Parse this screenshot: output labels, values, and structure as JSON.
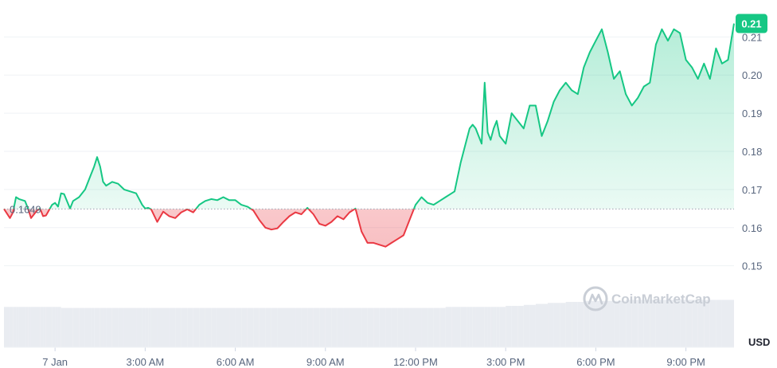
{
  "chart_data": {
    "type": "area",
    "x_ticks": [
      "7 Jan",
      "3:00 AM",
      "6:00 AM",
      "9:00 AM",
      "12:00 PM",
      "3:00 PM",
      "6:00 PM",
      "9:00 PM"
    ],
    "y_ticks": [
      0.15,
      0.16,
      0.17,
      0.18,
      0.19,
      0.2,
      0.21
    ],
    "y_unit_label": "USD",
    "ylim": [
      0.142,
      0.218
    ],
    "x_range_hours": [
      -1.7,
      22.6
    ],
    "reference_price": 0.1649,
    "reference_label": "0.1649",
    "current_price_label": "0.21",
    "current_price": 0.2135,
    "watermark": "CoinMarketCap",
    "grid": true,
    "colors": {
      "up": "#16c784",
      "down": "#ea3943",
      "badge": "#16c784",
      "volume": "#e9ecf1"
    },
    "series": {
      "x_hours": [
        -1.7,
        -1.5,
        -1.4,
        -1.3,
        -1.2,
        -1.0,
        -0.9,
        -0.8,
        -0.6,
        -0.5,
        -0.4,
        -0.3,
        -0.1,
        0.0,
        0.1,
        0.2,
        0.3,
        0.5,
        0.6,
        0.8,
        1.0,
        1.2,
        1.3,
        1.4,
        1.5,
        1.6,
        1.7,
        1.9,
        2.1,
        2.3,
        2.5,
        2.7,
        2.9,
        3.0,
        3.1,
        3.2,
        3.4,
        3.6,
        3.8,
        4.0,
        4.2,
        4.4,
        4.6,
        4.8,
        5.0,
        5.2,
        5.4,
        5.6,
        5.8,
        6.0,
        6.2,
        6.4,
        6.6,
        6.8,
        7.0,
        7.2,
        7.4,
        7.6,
        7.8,
        8.0,
        8.2,
        8.4,
        8.6,
        8.8,
        9.0,
        9.2,
        9.4,
        9.6,
        9.8,
        10.0,
        10.2,
        10.4,
        10.6,
        10.8,
        11.0,
        11.2,
        11.4,
        11.6,
        11.8,
        12.0,
        12.2,
        12.4,
        12.6,
        12.8,
        13.0,
        13.2,
        13.3,
        13.5,
        13.7,
        13.8,
        13.9,
        14.0,
        14.2,
        14.3,
        14.4,
        14.5,
        14.6,
        14.7,
        14.8,
        15.0,
        15.2,
        15.4,
        15.6,
        15.8,
        16.0,
        16.2,
        16.4,
        16.6,
        16.8,
        17.0,
        17.2,
        17.4,
        17.6,
        17.8,
        18.0,
        18.2,
        18.4,
        18.6,
        18.8,
        19.0,
        19.2,
        19.4,
        19.6,
        19.8,
        20.0,
        20.2,
        20.4,
        20.6,
        20.8,
        21.0,
        21.2,
        21.4,
        21.6,
        21.8,
        22.0,
        22.2,
        22.4,
        22.6
      ],
      "price": [
        0.1649,
        0.1625,
        0.164,
        0.168,
        0.1675,
        0.167,
        0.165,
        0.1625,
        0.1645,
        0.165,
        0.163,
        0.1632,
        0.166,
        0.1665,
        0.1655,
        0.169,
        0.1688,
        0.165,
        0.167,
        0.168,
        0.17,
        0.174,
        0.176,
        0.1785,
        0.176,
        0.172,
        0.171,
        0.172,
        0.1715,
        0.17,
        0.1695,
        0.169,
        0.166,
        0.165,
        0.1652,
        0.1648,
        0.1615,
        0.1642,
        0.163,
        0.1625,
        0.164,
        0.1648,
        0.164,
        0.166,
        0.167,
        0.1675,
        0.1672,
        0.168,
        0.1672,
        0.1672,
        0.166,
        0.1655,
        0.1645,
        0.162,
        0.16,
        0.1595,
        0.1598,
        0.1615,
        0.163,
        0.164,
        0.1635,
        0.1652,
        0.1635,
        0.161,
        0.1605,
        0.1615,
        0.163,
        0.1622,
        0.164,
        0.165,
        0.159,
        0.156,
        0.156,
        0.1555,
        0.155,
        0.156,
        0.157,
        0.158,
        0.162,
        0.166,
        0.168,
        0.1665,
        0.166,
        0.167,
        0.168,
        0.169,
        0.1695,
        0.177,
        0.183,
        0.186,
        0.187,
        0.186,
        0.182,
        0.198,
        0.185,
        0.183,
        0.186,
        0.188,
        0.184,
        0.182,
        0.19,
        0.188,
        0.186,
        0.192,
        0.192,
        0.184,
        0.188,
        0.193,
        0.196,
        0.198,
        0.196,
        0.195,
        0.202,
        0.206,
        0.209,
        0.212,
        0.206,
        0.199,
        0.201,
        0.195,
        0.192,
        0.194,
        0.197,
        0.198,
        0.208,
        0.212,
        0.209,
        0.212,
        0.211,
        0.204,
        0.202,
        0.199,
        0.203,
        0.199,
        0.207,
        0.203,
        0.204,
        0.2135
      ],
      "volume": [
        0.04,
        0.04,
        0.04,
        0.04,
        0.04,
        0.04,
        0.04,
        0.04,
        0.04,
        0.04,
        0.04,
        0.04,
        0.04,
        0.04,
        0.04,
        0.039,
        0.039,
        0.039,
        0.039,
        0.039,
        0.039,
        0.039,
        0.039,
        0.039,
        0.039,
        0.039,
        0.039,
        0.039,
        0.039,
        0.039,
        0.039,
        0.039,
        0.039,
        0.039,
        0.039,
        0.039,
        0.039,
        0.039,
        0.039,
        0.039,
        0.039,
        0.039,
        0.039,
        0.039,
        0.039,
        0.039,
        0.039,
        0.039,
        0.039,
        0.039,
        0.039,
        0.039,
        0.039,
        0.039,
        0.039,
        0.039,
        0.039,
        0.039,
        0.039,
        0.039,
        0.039,
        0.039,
        0.039,
        0.039,
        0.039,
        0.039,
        0.039,
        0.039,
        0.039,
        0.039,
        0.039,
        0.039,
        0.039,
        0.039,
        0.039,
        0.039,
        0.039,
        0.039,
        0.039,
        0.039,
        0.039,
        0.039,
        0.039,
        0.039,
        0.04,
        0.04,
        0.04,
        0.04,
        0.04,
        0.04,
        0.04,
        0.04,
        0.04,
        0.04,
        0.04,
        0.04,
        0.04,
        0.04,
        0.04,
        0.041,
        0.041,
        0.041,
        0.042,
        0.042,
        0.043,
        0.043,
        0.044,
        0.044,
        0.044,
        0.045,
        0.045,
        0.045,
        0.046,
        0.046,
        0.046,
        0.046,
        0.046,
        0.046,
        0.046,
        0.047,
        0.047,
        0.047,
        0.047,
        0.047,
        0.047,
        0.047,
        0.047,
        0.047,
        0.047,
        0.047,
        0.047,
        0.047,
        0.047,
        0.047,
        0.047,
        0.047,
        0.047,
        0.047
      ]
    }
  }
}
